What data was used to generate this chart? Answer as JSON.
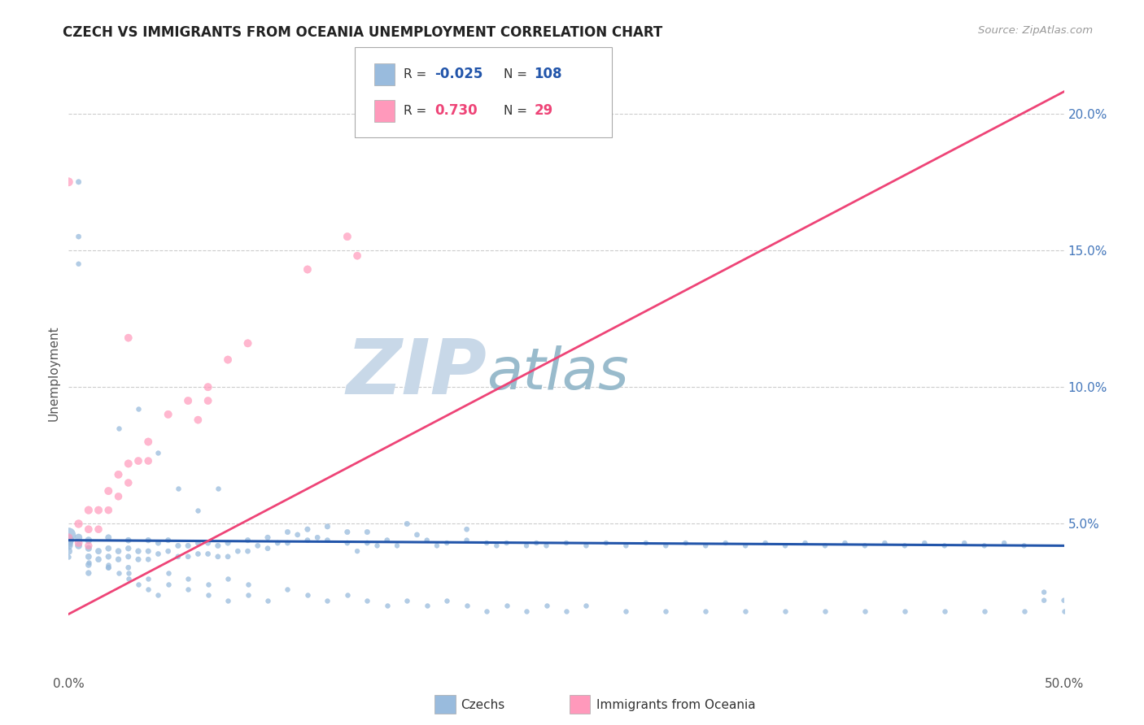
{
  "title": "CZECH VS IMMIGRANTS FROM OCEANIA UNEMPLOYMENT CORRELATION CHART",
  "source": "Source: ZipAtlas.com",
  "ylabel": "Unemployment",
  "xlim": [
    0.0,
    0.5
  ],
  "ylim": [
    -0.005,
    0.215
  ],
  "xticks": [
    0.0,
    0.1,
    0.2,
    0.3,
    0.4,
    0.5
  ],
  "xticklabels": [
    "0.0%",
    "",
    "",
    "",
    "",
    "50.0%"
  ],
  "yticks_right": [
    0.05,
    0.1,
    0.15,
    0.2
  ],
  "yticklabels_right": [
    "5.0%",
    "10.0%",
    "15.0%",
    "20.0%"
  ],
  "legend_r1_val": "-0.025",
  "legend_n1_val": "108",
  "legend_r2_val": "0.730",
  "legend_n2_val": "29",
  "blue_color": "#99bbdd",
  "pink_color": "#ff99bb",
  "blue_line_color": "#2255aa",
  "pink_line_color": "#ee4477",
  "watermark_zip": "ZIP",
  "watermark_atlas": "atlas",
  "watermark_color_zip": "#c8d8e8",
  "watermark_color_atlas": "#99bbcc",
  "background_color": "#ffffff",
  "grid_color": "#cccccc",
  "czechs_label": "Czechs",
  "oceania_label": "Immigrants from Oceania",
  "blue_trend_x0": 0.0,
  "blue_trend_x1": 0.5,
  "blue_trend_y0": 0.044,
  "blue_trend_y1": 0.042,
  "pink_trend_x0": 0.0,
  "pink_trend_x1": 0.5,
  "pink_trend_y0": 0.017,
  "pink_trend_y1": 0.208,
  "blue_x": [
    0.0,
    0.0,
    0.0,
    0.0,
    0.0,
    0.005,
    0.005,
    0.01,
    0.01,
    0.01,
    0.01,
    0.01,
    0.015,
    0.015,
    0.02,
    0.02,
    0.02,
    0.02,
    0.025,
    0.025,
    0.03,
    0.03,
    0.03,
    0.03,
    0.035,
    0.035,
    0.04,
    0.04,
    0.04,
    0.045,
    0.045,
    0.05,
    0.05,
    0.055,
    0.055,
    0.06,
    0.06,
    0.065,
    0.065,
    0.07,
    0.07,
    0.075,
    0.075,
    0.08,
    0.08,
    0.085,
    0.09,
    0.09,
    0.095,
    0.1,
    0.1,
    0.105,
    0.11,
    0.11,
    0.115,
    0.12,
    0.12,
    0.125,
    0.13,
    0.13,
    0.14,
    0.14,
    0.145,
    0.15,
    0.15,
    0.155,
    0.16,
    0.165,
    0.17,
    0.175,
    0.18,
    0.185,
    0.19,
    0.2,
    0.2,
    0.21,
    0.215,
    0.22,
    0.23,
    0.235,
    0.24,
    0.25,
    0.26,
    0.27,
    0.28,
    0.29,
    0.3,
    0.31,
    0.32,
    0.33,
    0.34,
    0.35,
    0.36,
    0.37,
    0.38,
    0.39,
    0.4,
    0.41,
    0.42,
    0.43,
    0.44,
    0.45,
    0.46,
    0.47,
    0.48,
    0.49,
    0.49,
    0.5,
    0.005,
    0.005,
    0.005
  ],
  "blue_y": [
    0.046,
    0.044,
    0.043,
    0.042,
    0.04,
    0.045,
    0.042,
    0.044,
    0.041,
    0.038,
    0.035,
    0.032,
    0.04,
    0.037,
    0.045,
    0.041,
    0.038,
    0.034,
    0.04,
    0.037,
    0.044,
    0.041,
    0.038,
    0.034,
    0.04,
    0.037,
    0.044,
    0.04,
    0.037,
    0.043,
    0.039,
    0.044,
    0.04,
    0.042,
    0.038,
    0.042,
    0.038,
    0.043,
    0.039,
    0.043,
    0.039,
    0.042,
    0.038,
    0.043,
    0.038,
    0.04,
    0.044,
    0.04,
    0.042,
    0.045,
    0.041,
    0.043,
    0.047,
    0.043,
    0.046,
    0.048,
    0.044,
    0.045,
    0.049,
    0.044,
    0.047,
    0.043,
    0.04,
    0.047,
    0.043,
    0.042,
    0.044,
    0.042,
    0.05,
    0.046,
    0.044,
    0.042,
    0.043,
    0.048,
    0.044,
    0.043,
    0.042,
    0.043,
    0.042,
    0.043,
    0.042,
    0.043,
    0.042,
    0.043,
    0.042,
    0.043,
    0.042,
    0.043,
    0.042,
    0.043,
    0.042,
    0.043,
    0.042,
    0.043,
    0.042,
    0.043,
    0.042,
    0.043,
    0.042,
    0.043,
    0.042,
    0.043,
    0.042,
    0.043,
    0.042,
    0.025,
    0.022,
    0.022,
    0.175,
    0.155,
    0.145
  ],
  "blue_sizes": [
    150,
    80,
    60,
    50,
    40,
    40,
    35,
    35,
    30,
    28,
    26,
    24,
    28,
    26,
    28,
    26,
    24,
    22,
    26,
    24,
    26,
    24,
    22,
    20,
    24,
    22,
    24,
    22,
    20,
    22,
    20,
    22,
    20,
    22,
    20,
    22,
    20,
    22,
    20,
    22,
    20,
    22,
    20,
    22,
    20,
    20,
    22,
    20,
    20,
    22,
    20,
    20,
    22,
    20,
    20,
    22,
    20,
    20,
    22,
    20,
    22,
    20,
    18,
    22,
    20,
    18,
    20,
    18,
    22,
    20,
    18,
    18,
    18,
    20,
    18,
    18,
    18,
    18,
    18,
    18,
    18,
    18,
    18,
    18,
    18,
    18,
    18,
    18,
    18,
    18,
    18,
    18,
    18,
    18,
    18,
    18,
    18,
    18,
    18,
    18,
    18,
    18,
    18,
    18,
    18,
    18,
    18,
    18,
    22,
    20,
    18
  ],
  "blue_extra_x": [
    0.02,
    0.025,
    0.03,
    0.035,
    0.04,
    0.045,
    0.05,
    0.06,
    0.07,
    0.08,
    0.09,
    0.1,
    0.11,
    0.12,
    0.13,
    0.14,
    0.15,
    0.16,
    0.17,
    0.18,
    0.19,
    0.2,
    0.21,
    0.22,
    0.23,
    0.24,
    0.25,
    0.26,
    0.28,
    0.3,
    0.32,
    0.34,
    0.36,
    0.38,
    0.4,
    0.42,
    0.44,
    0.46,
    0.48,
    0.5,
    0.0,
    0.01,
    0.02,
    0.03,
    0.04,
    0.05,
    0.06,
    0.07,
    0.08,
    0.09,
    0.025,
    0.035,
    0.045,
    0.055,
    0.065,
    0.075
  ],
  "blue_extra_y": [
    0.035,
    0.032,
    0.03,
    0.028,
    0.026,
    0.024,
    0.028,
    0.026,
    0.024,
    0.022,
    0.024,
    0.022,
    0.026,
    0.024,
    0.022,
    0.024,
    0.022,
    0.02,
    0.022,
    0.02,
    0.022,
    0.02,
    0.018,
    0.02,
    0.018,
    0.02,
    0.018,
    0.02,
    0.018,
    0.018,
    0.018,
    0.018,
    0.018,
    0.018,
    0.018,
    0.018,
    0.018,
    0.018,
    0.018,
    0.018,
    0.038,
    0.036,
    0.034,
    0.032,
    0.03,
    0.032,
    0.03,
    0.028,
    0.03,
    0.028,
    0.085,
    0.092,
    0.076,
    0.063,
    0.055,
    0.063
  ],
  "pink_x": [
    0.0,
    0.0,
    0.005,
    0.005,
    0.01,
    0.01,
    0.01,
    0.015,
    0.015,
    0.02,
    0.02,
    0.025,
    0.025,
    0.03,
    0.03,
    0.035,
    0.04,
    0.04,
    0.05,
    0.06,
    0.065,
    0.07,
    0.07,
    0.08,
    0.09,
    0.12,
    0.14,
    0.145,
    0.03
  ],
  "pink_y": [
    0.175,
    0.045,
    0.05,
    0.043,
    0.055,
    0.048,
    0.042,
    0.055,
    0.048,
    0.062,
    0.055,
    0.068,
    0.06,
    0.072,
    0.065,
    0.073,
    0.08,
    0.073,
    0.09,
    0.095,
    0.088,
    0.1,
    0.095,
    0.11,
    0.116,
    0.143,
    0.155,
    0.148,
    0.118
  ],
  "pink_sizes": [
    55,
    45,
    50,
    44,
    48,
    44,
    40,
    46,
    42,
    46,
    42,
    46,
    42,
    46,
    42,
    44,
    46,
    42,
    46,
    46,
    44,
    46,
    44,
    46,
    46,
    46,
    46,
    44,
    44
  ]
}
